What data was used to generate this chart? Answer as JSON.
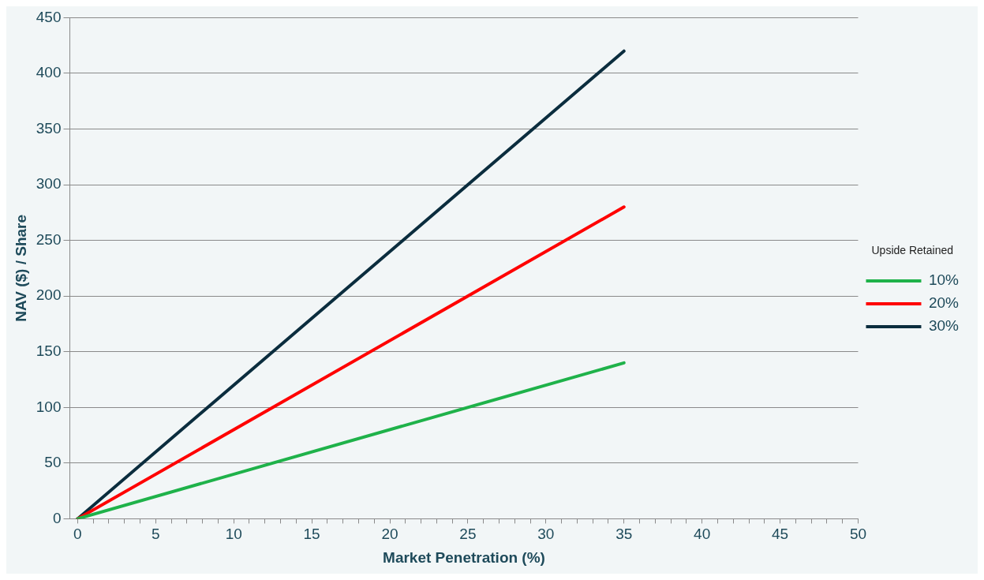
{
  "chart_data": {
    "type": "line",
    "xlabel": "Market Penetration (%)",
    "ylabel": "NAV ($) / Share",
    "legend_title": "Upside Retained",
    "legend": "right",
    "grid": "y",
    "marker": "none",
    "line_style": "solid",
    "xlim": [
      -0.5,
      50
    ],
    "xticks": [
      0,
      {
        "value": 1,
        "label": null
      },
      {
        "value": 2,
        "label": null
      },
      {
        "value": 3,
        "label": null
      },
      {
        "value": 4,
        "label": null
      },
      5,
      {
        "value": 6,
        "label": null
      },
      {
        "value": 7,
        "label": null
      },
      {
        "value": 8,
        "label": null
      },
      {
        "value": 9,
        "label": null
      },
      10,
      {
        "value": 11,
        "label": null
      },
      {
        "value": 12,
        "label": null
      },
      {
        "value": 13,
        "label": null
      },
      {
        "value": 14,
        "label": null
      },
      15,
      {
        "value": 16,
        "label": null
      },
      {
        "value": 17,
        "label": null
      },
      {
        "value": 18,
        "label": null
      },
      {
        "value": 19,
        "label": null
      },
      20,
      {
        "value": 21,
        "label": null
      },
      {
        "value": 22,
        "label": null
      },
      {
        "value": 23,
        "label": null
      },
      {
        "value": 24,
        "label": null
      },
      25,
      {
        "value": 26,
        "label": null
      },
      {
        "value": 27,
        "label": null
      },
      {
        "value": 28,
        "label": null
      },
      {
        "value": 29,
        "label": null
      },
      30,
      {
        "value": 31,
        "label": null
      },
      {
        "value": 32,
        "label": null
      },
      {
        "value": 33,
        "label": null
      },
      {
        "value": 34,
        "label": null
      },
      35,
      {
        "value": 36,
        "label": null
      },
      {
        "value": 37,
        "label": null
      },
      {
        "value": 38,
        "label": null
      },
      {
        "value": 39,
        "label": null
      },
      40,
      {
        "value": 41,
        "label": null
      },
      {
        "value": 42,
        "label": null
      },
      {
        "value": 43,
        "label": null
      },
      {
        "value": 44,
        "label": null
      },
      45,
      {
        "value": 46,
        "label": null
      },
      {
        "value": 47,
        "label": null
      },
      {
        "value": 48,
        "label": null
      },
      {
        "value": 49,
        "label": null
      },
      50
    ],
    "ylim": [
      0,
      450
    ],
    "yticks": [
      0,
      50,
      100,
      150,
      200,
      250,
      300,
      350,
      400,
      450
    ],
    "x": [
      0,
      35
    ],
    "series": [
      {
        "name": "10%",
        "color": "#1fb24a",
        "values": [
          0,
          140
        ]
      },
      {
        "name": "20%",
        "color": "#ff0000",
        "values": [
          0,
          280
        ]
      },
      {
        "name": "30%",
        "color": "#0b2d3e",
        "values": [
          0,
          420
        ]
      }
    ]
  }
}
